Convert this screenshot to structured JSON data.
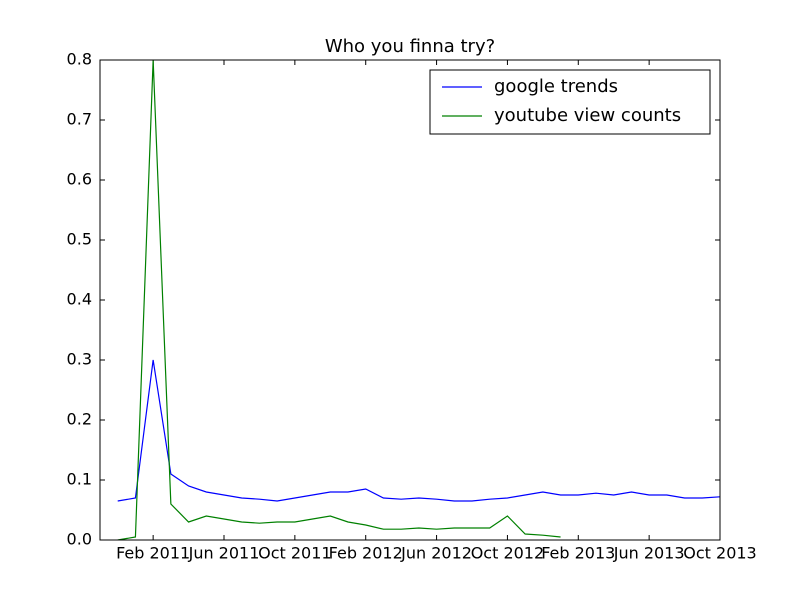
{
  "chart_data": {
    "type": "line",
    "title": "Who you finna try?",
    "x": [
      "2010-12",
      "2011-01",
      "2011-02",
      "2011-03",
      "2011-04",
      "2011-05",
      "2011-06",
      "2011-07",
      "2011-08",
      "2011-09",
      "2011-10",
      "2011-11",
      "2011-12",
      "2012-01",
      "2012-02",
      "2012-03",
      "2012-04",
      "2012-05",
      "2012-06",
      "2012-07",
      "2012-08",
      "2012-09",
      "2012-10",
      "2012-11",
      "2012-12",
      "2013-01",
      "2013-02",
      "2013-03",
      "2013-04",
      "2013-05",
      "2013-06",
      "2013-07",
      "2013-08",
      "2013-09",
      "2013-10"
    ],
    "series": [
      {
        "name": "google trends",
        "color": "#0000ff",
        "values": [
          0.065,
          0.07,
          0.3,
          0.11,
          0.09,
          0.08,
          0.075,
          0.07,
          0.068,
          0.065,
          0.07,
          0.075,
          0.08,
          0.08,
          0.085,
          0.07,
          0.068,
          0.07,
          0.068,
          0.065,
          0.065,
          0.068,
          0.07,
          0.075,
          0.08,
          0.075,
          0.075,
          0.078,
          0.075,
          0.08,
          0.075,
          0.075,
          0.07,
          0.07,
          0.072
        ]
      },
      {
        "name": "youtube view counts",
        "color": "#008000",
        "values": [
          0.0,
          0.005,
          0.8,
          0.06,
          0.03,
          0.04,
          0.035,
          0.03,
          0.028,
          0.03,
          0.03,
          0.035,
          0.04,
          0.03,
          0.025,
          0.018,
          0.018,
          0.02,
          0.018,
          0.02,
          0.02,
          0.02,
          0.04,
          0.01,
          0.008,
          0.005,
          null,
          null,
          null,
          null,
          null,
          null,
          null,
          null,
          null
        ]
      }
    ],
    "xlim": [
      "2010-11",
      "2013-10"
    ],
    "xticks": [
      {
        "value": "2011-02",
        "label": "Feb 2011"
      },
      {
        "value": "2011-06",
        "label": "Jun 2011"
      },
      {
        "value": "2011-10",
        "label": "Oct 2011"
      },
      {
        "value": "2012-02",
        "label": "Feb 2012"
      },
      {
        "value": "2012-06",
        "label": "Jun 2012"
      },
      {
        "value": "2012-10",
        "label": "Oct 2012"
      },
      {
        "value": "2013-02",
        "label": "Feb 2013"
      },
      {
        "value": "2013-06",
        "label": "Jun 2013"
      },
      {
        "value": "2013-10",
        "label": "Oct 2013"
      }
    ],
    "ylim": [
      0,
      0.8
    ],
    "yticks": [
      {
        "value": 0,
        "label": "0.0"
      },
      0.1,
      0.2,
      0.3,
      0.4,
      0.5,
      0.6,
      0.7,
      0.8
    ],
    "legend": "upper right"
  }
}
